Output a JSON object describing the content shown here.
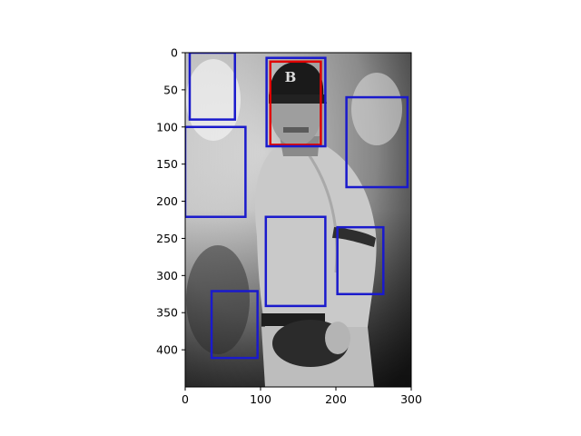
{
  "chart_data": {
    "type": "scatter",
    "title": "",
    "xlabel": "",
    "ylabel": "",
    "xlim": [
      0,
      300
    ],
    "ylim": [
      450,
      0
    ],
    "xticks": [
      0,
      100,
      200,
      300
    ],
    "yticks": [
      0,
      50,
      100,
      150,
      200,
      250,
      300,
      350,
      400
    ],
    "grid": false,
    "legend": "none",
    "image": {
      "subject": "grayscale photo of a baseball pitcher in a cap with a B logo",
      "cap_color": "#1a1a1a",
      "uniform_color": "#c9c9c9"
    },
    "boxes": [
      {
        "color": "#e00000",
        "x0": 113,
        "y0": 12,
        "x1": 180,
        "y1": 124
      },
      {
        "color": "#1a1acc",
        "x0": 108,
        "y0": 7,
        "x1": 186,
        "y1": 126
      },
      {
        "color": "#1a1acc",
        "x0": 6,
        "y0": 0,
        "x1": 66,
        "y1": 90
      },
      {
        "color": "#1a1acc",
        "x0": 0,
        "y0": 100,
        "x1": 80,
        "y1": 221
      },
      {
        "color": "#1a1acc",
        "x0": 214,
        "y0": 60,
        "x1": 295,
        "y1": 181
      },
      {
        "color": "#1a1acc",
        "x0": 107,
        "y0": 221,
        "x1": 186,
        "y1": 341
      },
      {
        "color": "#1a1acc",
        "x0": 202,
        "y0": 235,
        "x1": 263,
        "y1": 325
      },
      {
        "color": "#1a1acc",
        "x0": 35,
        "y0": 321,
        "x1": 96,
        "y1": 411
      }
    ]
  }
}
